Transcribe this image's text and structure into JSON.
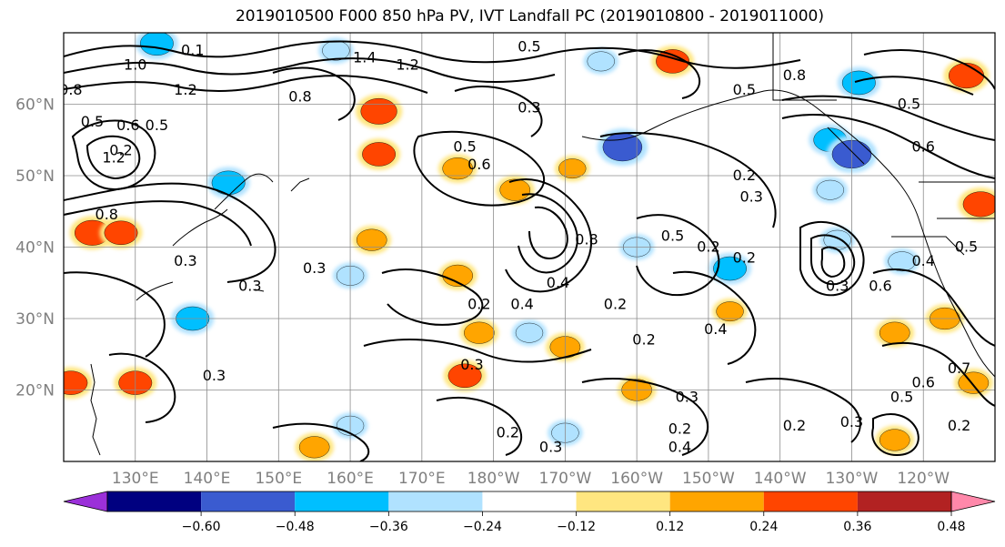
{
  "chart_data": {
    "type": "heatmap",
    "title": "2019010500 F000 850 hPa PV, IVT Landfall PC (2019010800 - 2019011000)",
    "map_extent": {
      "lon_min": 120,
      "lon_max": 250,
      "lat_min": 10,
      "lat_max": 70
    },
    "x_ticks": [
      {
        "lon": 130,
        "label": "130°E"
      },
      {
        "lon": 140,
        "label": "140°E"
      },
      {
        "lon": 150,
        "label": "150°E"
      },
      {
        "lon": 160,
        "label": "160°E"
      },
      {
        "lon": 170,
        "label": "170°E"
      },
      {
        "lon": 180,
        "label": "180°W"
      },
      {
        "lon": 190,
        "label": "170°W"
      },
      {
        "lon": 200,
        "label": "160°W"
      },
      {
        "lon": 210,
        "label": "150°W"
      },
      {
        "lon": 220,
        "label": "140°W"
      },
      {
        "lon": 230,
        "label": "130°W"
      },
      {
        "lon": 240,
        "label": "120°W"
      }
    ],
    "y_ticks": [
      {
        "lat": 20,
        "label": "20°N"
      },
      {
        "lat": 30,
        "label": "30°N"
      },
      {
        "lat": 40,
        "label": "40°N"
      },
      {
        "lat": 50,
        "label": "50°N"
      },
      {
        "lat": 60,
        "label": "60°N"
      }
    ],
    "grid": true,
    "colorbar": {
      "orientation": "horizontal",
      "extend": "both",
      "levels": [
        -0.6,
        -0.48,
        -0.36,
        -0.24,
        -0.12,
        0.12,
        0.24,
        0.36,
        0.48,
        0.6
      ],
      "tick_labels": [
        "−0.60",
        "−0.48",
        "−0.36",
        "−0.24",
        "−0.12",
        "0.12",
        "0.24",
        "0.36",
        "0.48",
        "0.60"
      ],
      "colors": [
        "#9b30d9",
        "#000080",
        "#3a5bd0",
        "#00bfff",
        "#b0e2ff",
        "#ffffff",
        "#ffe680",
        "#ffa500",
        "#ff4500",
        "#b22222",
        "#ff88aa"
      ]
    },
    "shaded_field": [
      {
        "lon": 133,
        "lat": 68.5,
        "value": -0.36
      },
      {
        "lon": 158,
        "lat": 67.5,
        "value": -0.24
      },
      {
        "lon": 195,
        "lat": 66,
        "value": -0.24
      },
      {
        "lon": 205,
        "lat": 66,
        "value": 0.36
      },
      {
        "lon": 231,
        "lat": 63,
        "value": -0.36
      },
      {
        "lon": 246,
        "lat": 64,
        "value": 0.4
      },
      {
        "lon": 164,
        "lat": 59,
        "value": 0.42
      },
      {
        "lon": 164,
        "lat": 53,
        "value": 0.36
      },
      {
        "lon": 175,
        "lat": 51,
        "value": 0.3
      },
      {
        "lon": 183,
        "lat": 48,
        "value": 0.3
      },
      {
        "lon": 191,
        "lat": 51,
        "value": 0.24
      },
      {
        "lon": 198,
        "lat": 54,
        "value": -0.48
      },
      {
        "lon": 227,
        "lat": 55,
        "value": -0.36
      },
      {
        "lon": 230,
        "lat": 53,
        "value": -0.48
      },
      {
        "lon": 143,
        "lat": 49,
        "value": -0.36
      },
      {
        "lon": 124,
        "lat": 42,
        "value": 0.4
      },
      {
        "lon": 128,
        "lat": 42,
        "value": 0.36
      },
      {
        "lon": 248,
        "lat": 46,
        "value": 0.4
      },
      {
        "lon": 163,
        "lat": 41,
        "value": 0.3
      },
      {
        "lon": 160,
        "lat": 36,
        "value": -0.24
      },
      {
        "lon": 175,
        "lat": 36,
        "value": 0.3
      },
      {
        "lon": 213,
        "lat": 37,
        "value": -0.36
      },
      {
        "lon": 200,
        "lat": 40,
        "value": -0.24
      },
      {
        "lon": 213,
        "lat": 31,
        "value": 0.24
      },
      {
        "lon": 178,
        "lat": 28,
        "value": 0.3
      },
      {
        "lon": 185,
        "lat": 28,
        "value": -0.24
      },
      {
        "lon": 190,
        "lat": 26,
        "value": 0.3
      },
      {
        "lon": 176,
        "lat": 22,
        "value": 0.36
      },
      {
        "lon": 130,
        "lat": 21,
        "value": 0.36
      },
      {
        "lon": 236,
        "lat": 28,
        "value": 0.3
      },
      {
        "lon": 243,
        "lat": 30,
        "value": 0.3
      },
      {
        "lon": 247,
        "lat": 21,
        "value": 0.3
      },
      {
        "lon": 236,
        "lat": 13,
        "value": 0.3
      },
      {
        "lon": 160,
        "lat": 15,
        "value": -0.24
      },
      {
        "lon": 190,
        "lat": 14,
        "value": -0.24
      },
      {
        "lon": 155,
        "lat": 12,
        "value": 0.3
      },
      {
        "lon": 200,
        "lat": 20,
        "value": 0.3
      },
      {
        "lon": 228,
        "lat": 41,
        "value": -0.24
      },
      {
        "lon": 237,
        "lat": 38,
        "value": -0.24
      },
      {
        "lon": 227,
        "lat": 48,
        "value": -0.24
      },
      {
        "lon": 121,
        "lat": 21,
        "value": 0.36
      },
      {
        "lon": 138,
        "lat": 30,
        "value": -0.36
      }
    ],
    "contour_labels": [
      {
        "lon": 138,
        "lat": 67.5,
        "text": "0.1"
      },
      {
        "lon": 130,
        "lat": 65.5,
        "text": "1.0"
      },
      {
        "lon": 162,
        "lat": 66.5,
        "text": "1.4"
      },
      {
        "lon": 168,
        "lat": 65.5,
        "text": "1.2"
      },
      {
        "lon": 137,
        "lat": 62,
        "text": "1.2"
      },
      {
        "lon": 121,
        "lat": 62,
        "text": "0.8"
      },
      {
        "lon": 153,
        "lat": 61,
        "text": "0.8"
      },
      {
        "lon": 124,
        "lat": 57.5,
        "text": "0.5"
      },
      {
        "lon": 129,
        "lat": 57,
        "text": "0.6"
      },
      {
        "lon": 133,
        "lat": 57,
        "text": "0.5"
      },
      {
        "lon": 127,
        "lat": 52.5,
        "text": "1.2"
      },
      {
        "lon": 126,
        "lat": 44.5,
        "text": "0.8"
      },
      {
        "lon": 128,
        "lat": 53.5,
        "text": "0.2"
      },
      {
        "lon": 185,
        "lat": 59.5,
        "text": "0.3"
      },
      {
        "lon": 176,
        "lat": 54,
        "text": "0.5"
      },
      {
        "lon": 178,
        "lat": 51.5,
        "text": "0.6"
      },
      {
        "lon": 215,
        "lat": 62,
        "text": "0.5"
      },
      {
        "lon": 222,
        "lat": 64,
        "text": "0.8"
      },
      {
        "lon": 238,
        "lat": 60,
        "text": "0.5"
      },
      {
        "lon": 240,
        "lat": 54,
        "text": "0.6"
      },
      {
        "lon": 215,
        "lat": 50,
        "text": "0.2"
      },
      {
        "lon": 216,
        "lat": 47,
        "text": "0.3"
      },
      {
        "lon": 193,
        "lat": 41,
        "text": "0.8"
      },
      {
        "lon": 205,
        "lat": 41.5,
        "text": "0.5"
      },
      {
        "lon": 210,
        "lat": 40,
        "text": "0.2"
      },
      {
        "lon": 215,
        "lat": 38.5,
        "text": "0.2"
      },
      {
        "lon": 189,
        "lat": 35,
        "text": "0.4"
      },
      {
        "lon": 197,
        "lat": 32,
        "text": "0.2"
      },
      {
        "lon": 178,
        "lat": 32,
        "text": "0.2"
      },
      {
        "lon": 184,
        "lat": 32,
        "text": "0.4"
      },
      {
        "lon": 146,
        "lat": 34.5,
        "text": "0.3"
      },
      {
        "lon": 155,
        "lat": 37,
        "text": "0.3"
      },
      {
        "lon": 137,
        "lat": 38,
        "text": "0.3"
      },
      {
        "lon": 141,
        "lat": 22,
        "text": "0.3"
      },
      {
        "lon": 177,
        "lat": 23.5,
        "text": "0.3"
      },
      {
        "lon": 211,
        "lat": 28.5,
        "text": "0.4"
      },
      {
        "lon": 201,
        "lat": 27,
        "text": "0.2"
      },
      {
        "lon": 207,
        "lat": 19,
        "text": "0.3"
      },
      {
        "lon": 222,
        "lat": 15,
        "text": "0.2"
      },
      {
        "lon": 206,
        "lat": 14.5,
        "text": "0.2"
      },
      {
        "lon": 230,
        "lat": 15.5,
        "text": "0.3"
      },
      {
        "lon": 206,
        "lat": 12,
        "text": "0.4"
      },
      {
        "lon": 188,
        "lat": 12,
        "text": "0.3"
      },
      {
        "lon": 182,
        "lat": 14,
        "text": "0.2"
      },
      {
        "lon": 228,
        "lat": 34.5,
        "text": "0.3"
      },
      {
        "lon": 234,
        "lat": 34.5,
        "text": "0.6"
      },
      {
        "lon": 240,
        "lat": 38,
        "text": "0.4"
      },
      {
        "lon": 246,
        "lat": 40,
        "text": "0.5"
      },
      {
        "lon": 240,
        "lat": 21,
        "text": "0.6"
      },
      {
        "lon": 245,
        "lat": 23,
        "text": "0.7"
      },
      {
        "lon": 237,
        "lat": 19,
        "text": "0.5"
      },
      {
        "lon": 245,
        "lat": 15,
        "text": "0.2"
      },
      {
        "lon": 185,
        "lat": 68,
        "text": "0.5"
      }
    ],
    "xlabel": "",
    "ylabel": ""
  }
}
